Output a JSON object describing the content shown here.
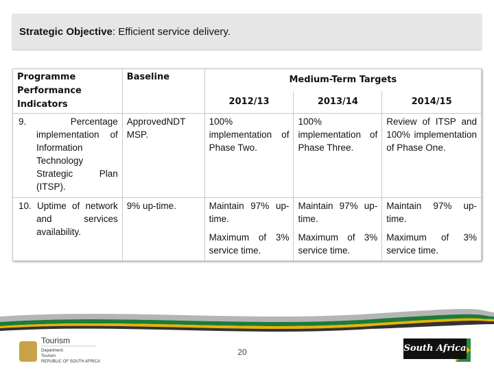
{
  "header": {
    "label": "Strategic Objective",
    "text": ": Efficient service delivery."
  },
  "table": {
    "headers": [
      "Programme Performance Indicators",
      "Baseline",
      "Medium-Term Targets"
    ],
    "years": [
      "2012/13",
      "2013/14",
      "2014/15"
    ],
    "rows": [
      {
        "indicator": "9. Percentage implementation of Information Technology Strategic Plan (ITSP).",
        "baseline": "ApprovedNDT MSP.",
        "targets": [
          "100% implementation of Phase Two.",
          "100% implementation of Phase Three.",
          "Review of ITSP and 100% implementation of Phase One."
        ]
      },
      {
        "indicator": "10. Uptime of network and services availability.",
        "baseline": "9% up-time.",
        "targets": [
          [
            "Maintain 97% up-time.",
            "Maximum of 3% service time."
          ],
          [
            "Maintain 97% up-time.",
            "Maximum of 3% service time."
          ],
          [
            "Maintain 97% up-time.",
            "Maximum of 3% service time."
          ]
        ]
      }
    ]
  },
  "footer": {
    "page": "20",
    "logo_left": [
      "Tourism",
      "Department:",
      "Tourism",
      "REPUBLIC OF SOUTH AFRICA"
    ],
    "logo_right": "South Africa"
  }
}
